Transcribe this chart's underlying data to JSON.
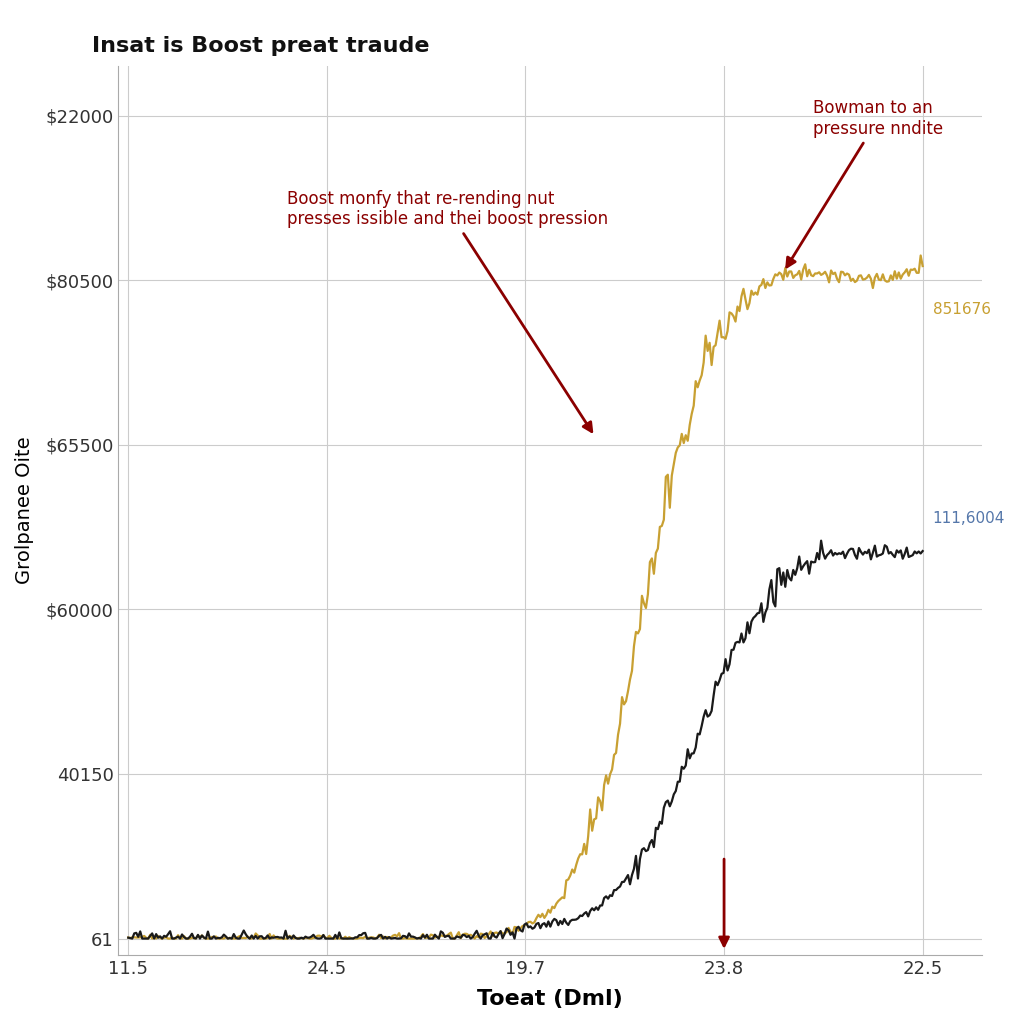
{
  "title": "Insat is Boost preat traude",
  "xlabel": "Toeat (Dml)",
  "ylabel": "Grolpanee Oite",
  "xtick_labels": [
    "11.5",
    "24.5",
    "19.7",
    "23.8",
    "22.5"
  ],
  "ytick_labels": [
    "61",
    "40150",
    "$60000",
    "$65500",
    "$80500",
    "$22000"
  ],
  "gold_label": "851676",
  "black_label": "111,6004",
  "annotation1_text": "Boost monfy that re-rending nut\npresses issible and thei boost pression",
  "annotation2_text": "Bowman to an\npressure nndite",
  "gold_color": "#C8A032",
  "black_color": "#1a1a1a",
  "blue_label_color": "#5577aa",
  "arrow_color": "#8B0000",
  "bg_color": "#ffffff",
  "grid_color": "#cccccc"
}
